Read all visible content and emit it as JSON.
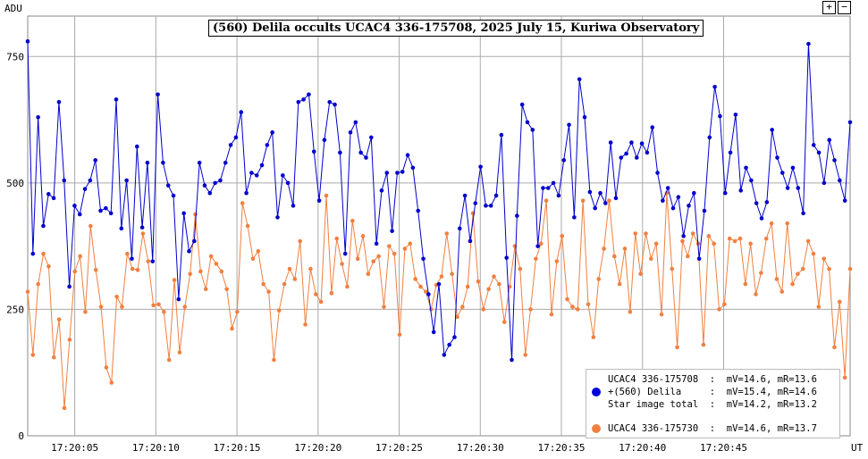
{
  "title": "(560) Delila occults UCAC4 336-175708, 2025 July 15, Kuriwa Observatory",
  "zoom": {
    "plus_label": "+",
    "minus_label": "−"
  },
  "chart_data": {
    "type": "line",
    "ylabel": "ADU",
    "xlabel": "UT",
    "ylim": [
      0,
      830
    ],
    "yticks": [
      0,
      250,
      500,
      750
    ],
    "x_range_seconds": [
      2.1,
      52.8
    ],
    "xticks": [
      {
        "s": 5,
        "label": "17:20:05"
      },
      {
        "s": 10,
        "label": "17:20:10"
      },
      {
        "s": 15,
        "label": "17:20:15"
      },
      {
        "s": 20,
        "label": "17:20:20"
      },
      {
        "s": 25,
        "label": "17:20:25"
      },
      {
        "s": 30,
        "label": "17:20:30"
      },
      {
        "s": 35,
        "label": "17:20:35"
      },
      {
        "s": 40,
        "label": "17:20:40"
      },
      {
        "s": 45,
        "label": "17:20:45"
      }
    ],
    "grid": true,
    "series": [
      {
        "name": "+(560) Delila",
        "color": "#0000cc",
        "values": [
          780,
          360,
          630,
          415,
          478,
          470,
          660,
          505,
          295,
          455,
          438,
          488,
          505,
          545,
          445,
          450,
          440,
          665,
          410,
          505,
          350,
          572,
          412,
          540,
          345,
          675,
          540,
          495,
          475,
          270,
          440,
          365,
          385,
          540,
          495,
          480,
          500,
          505,
          540,
          575,
          590,
          640,
          480,
          520,
          515,
          535,
          575,
          600,
          432,
          515,
          500,
          455,
          660,
          665,
          675,
          562,
          465,
          585,
          660,
          655,
          560,
          360,
          600,
          620,
          560,
          550,
          590,
          380,
          485,
          520,
          405,
          520,
          522,
          555,
          530,
          445,
          350,
          280,
          205,
          300,
          160,
          180,
          195,
          410,
          475,
          385,
          460,
          532,
          455,
          455,
          475,
          595,
          352,
          150,
          435,
          655,
          620,
          605,
          375,
          490,
          490,
          500,
          475,
          545,
          615,
          432,
          705,
          630,
          482,
          450,
          480,
          460,
          580,
          470,
          550,
          558,
          580,
          550,
          578,
          560,
          610,
          520,
          465,
          490,
          450,
          472,
          395,
          455,
          480,
          350,
          445,
          590,
          690,
          632,
          480,
          560,
          635,
          485,
          530,
          505,
          460,
          430,
          462,
          605,
          550,
          520,
          490,
          530,
          490,
          440,
          775,
          575,
          560,
          500,
          585,
          545,
          505,
          465,
          620
        ]
      },
      {
        "name": "UCAC4 336-175730",
        "color": "#f08040",
        "values": [
          285,
          160,
          300,
          360,
          335,
          155,
          230,
          55,
          190,
          325,
          355,
          245,
          415,
          328,
          255,
          135,
          105,
          275,
          255,
          360,
          330,
          328,
          400,
          345,
          258,
          260,
          245,
          150,
          308,
          165,
          255,
          320,
          438,
          325,
          290,
          355,
          340,
          325,
          290,
          212,
          245,
          460,
          415,
          350,
          365,
          300,
          285,
          150,
          248,
          300,
          330,
          310,
          385,
          220,
          330,
          280,
          265,
          475,
          282,
          390,
          340,
          295,
          425,
          350,
          395,
          320,
          345,
          355,
          255,
          375,
          360,
          200,
          370,
          380,
          310,
          295,
          285,
          250,
          298,
          315,
          400,
          320,
          235,
          255,
          295,
          440,
          305,
          250,
          290,
          315,
          300,
          225,
          295,
          375,
          330,
          160,
          250,
          350,
          380,
          465,
          240,
          345,
          395,
          270,
          255,
          250,
          465,
          260,
          195,
          310,
          370,
          465,
          355,
          300,
          370,
          245,
          400,
          320,
          400,
          350,
          380,
          240,
          480,
          330,
          175,
          385,
          355,
          400,
          380,
          180,
          395,
          380,
          250,
          260,
          390,
          385,
          390,
          300,
          380,
          280,
          322,
          390,
          420,
          310,
          285,
          420,
          300,
          320,
          330,
          385,
          360,
          255,
          350,
          330,
          175,
          265,
          115,
          330
        ]
      },
      {
        "name": "Star image total",
        "color": "#000000",
        "values": []
      }
    ]
  },
  "legend": {
    "rows": [
      {
        "text": "UCAC4 336-175708  :  mV=14.6, mR=13.6",
        "marker": "none"
      },
      {
        "text": "+(560) Delila     :  mV=15.4, mR=14.6",
        "marker": "#0000dd"
      },
      {
        "text": "Star image total  :  mV=14.2, mR=13.2",
        "marker": "none"
      },
      {
        "text": "UCAC4 336-175730  :  mV=14.6, mR=13.7",
        "marker": "#f08040"
      }
    ]
  }
}
